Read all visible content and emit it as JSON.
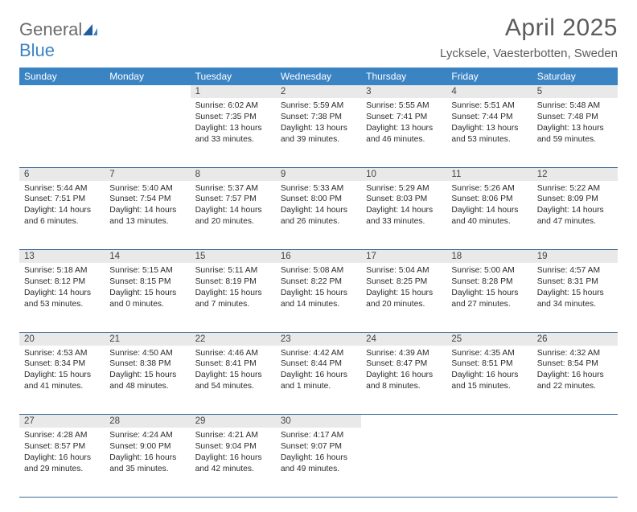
{
  "logo": {
    "general": "General",
    "blue": "Blue"
  },
  "title": "April 2025",
  "location": "Lycksele, Vaesterbotten, Sweden",
  "day_headers": [
    "Sunday",
    "Monday",
    "Tuesday",
    "Wednesday",
    "Thursday",
    "Friday",
    "Saturday"
  ],
  "colors": {
    "header_bg": "#3b84c4",
    "header_fg": "#ffffff",
    "daynum_bg": "#e9e9e9",
    "rule": "#3b6a95",
    "logo_gray": "#6b6b6b",
    "logo_blue": "#3b84c4",
    "title_color": "#5c5c5c"
  },
  "weeks": [
    [
      null,
      null,
      {
        "n": "1",
        "sr": "Sunrise: 6:02 AM",
        "ss": "Sunset: 7:35 PM",
        "dl1": "Daylight: 13 hours",
        "dl2": "and 33 minutes."
      },
      {
        "n": "2",
        "sr": "Sunrise: 5:59 AM",
        "ss": "Sunset: 7:38 PM",
        "dl1": "Daylight: 13 hours",
        "dl2": "and 39 minutes."
      },
      {
        "n": "3",
        "sr": "Sunrise: 5:55 AM",
        "ss": "Sunset: 7:41 PM",
        "dl1": "Daylight: 13 hours",
        "dl2": "and 46 minutes."
      },
      {
        "n": "4",
        "sr": "Sunrise: 5:51 AM",
        "ss": "Sunset: 7:44 PM",
        "dl1": "Daylight: 13 hours",
        "dl2": "and 53 minutes."
      },
      {
        "n": "5",
        "sr": "Sunrise: 5:48 AM",
        "ss": "Sunset: 7:48 PM",
        "dl1": "Daylight: 13 hours",
        "dl2": "and 59 minutes."
      }
    ],
    [
      {
        "n": "6",
        "sr": "Sunrise: 5:44 AM",
        "ss": "Sunset: 7:51 PM",
        "dl1": "Daylight: 14 hours",
        "dl2": "and 6 minutes."
      },
      {
        "n": "7",
        "sr": "Sunrise: 5:40 AM",
        "ss": "Sunset: 7:54 PM",
        "dl1": "Daylight: 14 hours",
        "dl2": "and 13 minutes."
      },
      {
        "n": "8",
        "sr": "Sunrise: 5:37 AM",
        "ss": "Sunset: 7:57 PM",
        "dl1": "Daylight: 14 hours",
        "dl2": "and 20 minutes."
      },
      {
        "n": "9",
        "sr": "Sunrise: 5:33 AM",
        "ss": "Sunset: 8:00 PM",
        "dl1": "Daylight: 14 hours",
        "dl2": "and 26 minutes."
      },
      {
        "n": "10",
        "sr": "Sunrise: 5:29 AM",
        "ss": "Sunset: 8:03 PM",
        "dl1": "Daylight: 14 hours",
        "dl2": "and 33 minutes."
      },
      {
        "n": "11",
        "sr": "Sunrise: 5:26 AM",
        "ss": "Sunset: 8:06 PM",
        "dl1": "Daylight: 14 hours",
        "dl2": "and 40 minutes."
      },
      {
        "n": "12",
        "sr": "Sunrise: 5:22 AM",
        "ss": "Sunset: 8:09 PM",
        "dl1": "Daylight: 14 hours",
        "dl2": "and 47 minutes."
      }
    ],
    [
      {
        "n": "13",
        "sr": "Sunrise: 5:18 AM",
        "ss": "Sunset: 8:12 PM",
        "dl1": "Daylight: 14 hours",
        "dl2": "and 53 minutes."
      },
      {
        "n": "14",
        "sr": "Sunrise: 5:15 AM",
        "ss": "Sunset: 8:15 PM",
        "dl1": "Daylight: 15 hours",
        "dl2": "and 0 minutes."
      },
      {
        "n": "15",
        "sr": "Sunrise: 5:11 AM",
        "ss": "Sunset: 8:19 PM",
        "dl1": "Daylight: 15 hours",
        "dl2": "and 7 minutes."
      },
      {
        "n": "16",
        "sr": "Sunrise: 5:08 AM",
        "ss": "Sunset: 8:22 PM",
        "dl1": "Daylight: 15 hours",
        "dl2": "and 14 minutes."
      },
      {
        "n": "17",
        "sr": "Sunrise: 5:04 AM",
        "ss": "Sunset: 8:25 PM",
        "dl1": "Daylight: 15 hours",
        "dl2": "and 20 minutes."
      },
      {
        "n": "18",
        "sr": "Sunrise: 5:00 AM",
        "ss": "Sunset: 8:28 PM",
        "dl1": "Daylight: 15 hours",
        "dl2": "and 27 minutes."
      },
      {
        "n": "19",
        "sr": "Sunrise: 4:57 AM",
        "ss": "Sunset: 8:31 PM",
        "dl1": "Daylight: 15 hours",
        "dl2": "and 34 minutes."
      }
    ],
    [
      {
        "n": "20",
        "sr": "Sunrise: 4:53 AM",
        "ss": "Sunset: 8:34 PM",
        "dl1": "Daylight: 15 hours",
        "dl2": "and 41 minutes."
      },
      {
        "n": "21",
        "sr": "Sunrise: 4:50 AM",
        "ss": "Sunset: 8:38 PM",
        "dl1": "Daylight: 15 hours",
        "dl2": "and 48 minutes."
      },
      {
        "n": "22",
        "sr": "Sunrise: 4:46 AM",
        "ss": "Sunset: 8:41 PM",
        "dl1": "Daylight: 15 hours",
        "dl2": "and 54 minutes."
      },
      {
        "n": "23",
        "sr": "Sunrise: 4:42 AM",
        "ss": "Sunset: 8:44 PM",
        "dl1": "Daylight: 16 hours",
        "dl2": "and 1 minute."
      },
      {
        "n": "24",
        "sr": "Sunrise: 4:39 AM",
        "ss": "Sunset: 8:47 PM",
        "dl1": "Daylight: 16 hours",
        "dl2": "and 8 minutes."
      },
      {
        "n": "25",
        "sr": "Sunrise: 4:35 AM",
        "ss": "Sunset: 8:51 PM",
        "dl1": "Daylight: 16 hours",
        "dl2": "and 15 minutes."
      },
      {
        "n": "26",
        "sr": "Sunrise: 4:32 AM",
        "ss": "Sunset: 8:54 PM",
        "dl1": "Daylight: 16 hours",
        "dl2": "and 22 minutes."
      }
    ],
    [
      {
        "n": "27",
        "sr": "Sunrise: 4:28 AM",
        "ss": "Sunset: 8:57 PM",
        "dl1": "Daylight: 16 hours",
        "dl2": "and 29 minutes."
      },
      {
        "n": "28",
        "sr": "Sunrise: 4:24 AM",
        "ss": "Sunset: 9:00 PM",
        "dl1": "Daylight: 16 hours",
        "dl2": "and 35 minutes."
      },
      {
        "n": "29",
        "sr": "Sunrise: 4:21 AM",
        "ss": "Sunset: 9:04 PM",
        "dl1": "Daylight: 16 hours",
        "dl2": "and 42 minutes."
      },
      {
        "n": "30",
        "sr": "Sunrise: 4:17 AM",
        "ss": "Sunset: 9:07 PM",
        "dl1": "Daylight: 16 hours",
        "dl2": "and 49 minutes."
      },
      null,
      null,
      null
    ]
  ]
}
